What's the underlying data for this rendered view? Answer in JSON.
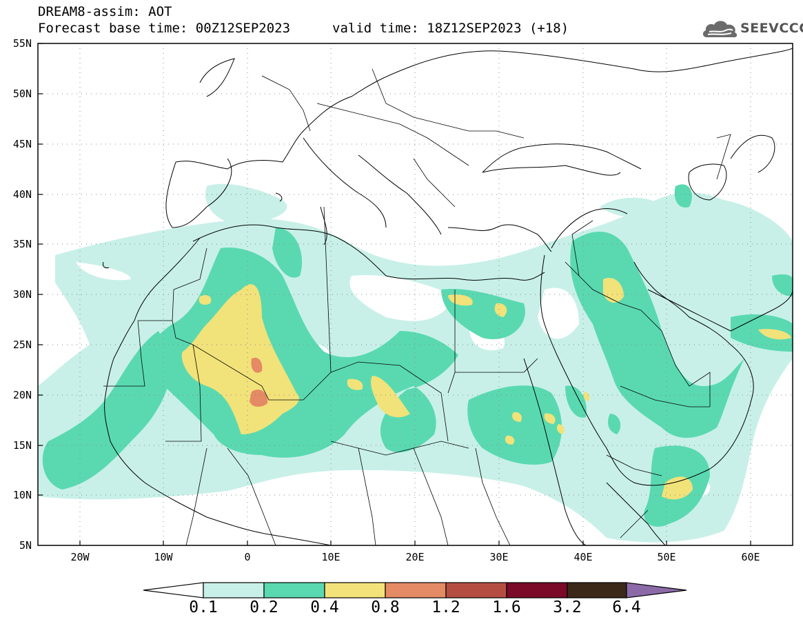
{
  "header": {
    "line1": "DREAM8-assim: AOT",
    "base_time": "Forecast base time: 00Z12SEP2023",
    "valid_time": "valid time: 18Z12SEP2023 (+18)",
    "logo_text": "SEEVCCC",
    "logo_icon": "cloud-icon"
  },
  "map": {
    "projection": "lat-lon",
    "lat_range": [
      5,
      55
    ],
    "lon_range": [
      -25,
      65
    ],
    "lat_labels": [
      "55N",
      "50N",
      "45N",
      "40N",
      "35N",
      "30N",
      "25N",
      "20N",
      "15N",
      "10N",
      "5N"
    ],
    "lon_labels": [
      "20W",
      "10W",
      "0",
      "10E",
      "20E",
      "30E",
      "40E",
      "50E",
      "60E"
    ],
    "grid": "dotted"
  },
  "colorbar": {
    "levels": [
      "0.1",
      "0.2",
      "0.4",
      "0.8",
      "1.2",
      "1.6",
      "3.2",
      "6.4"
    ],
    "colors": [
      "#c8f0e8",
      "#5ad9b0",
      "#f2e27a",
      "#e48a64",
      "#b54e42",
      "#7a0a28",
      "#3c2818",
      "#8c6aa8"
    ]
  },
  "aot_field": {
    "colors": {
      "lt0_2": "#c8f0e8",
      "0_2_0_4": "#5ad9b0",
      "0_4_0_8": "#f2e27a",
      "0_8_1_2": "#e48a64"
    }
  }
}
